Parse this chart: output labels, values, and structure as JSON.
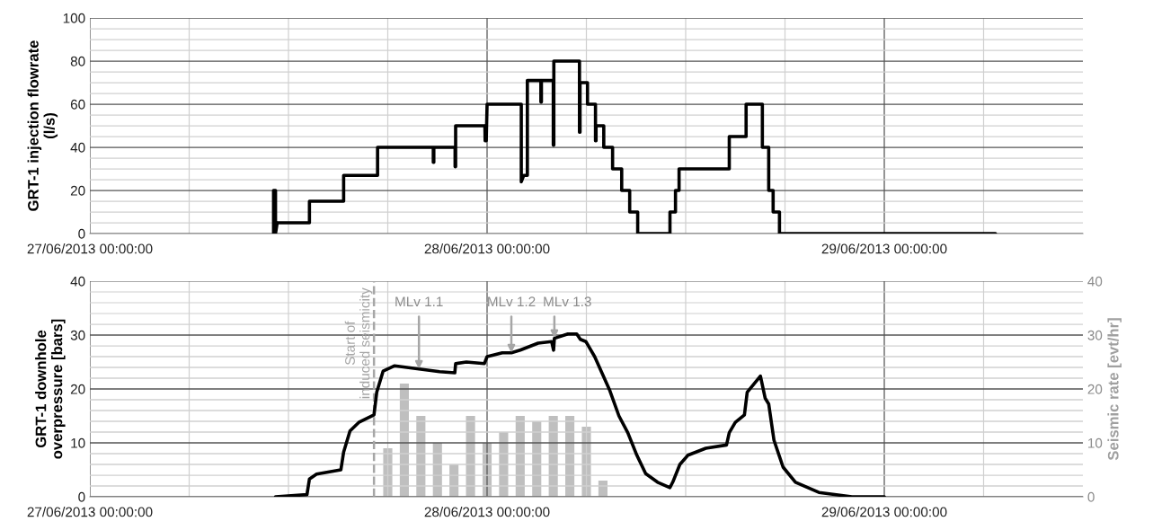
{
  "chart_data": [
    {
      "type": "line",
      "ylabel": "GRT-1 injection flowrate\n(l/s)",
      "xlim": [
        "2013-06-27T00:00",
        "2013-06-29T12:00"
      ],
      "xticks": [
        {
          "value": "2013-06-27T00:00",
          "label": "27/06/2013 00:00:00"
        },
        {
          "value": "2013-06-27T06:00",
          "label": null
        },
        {
          "value": "2013-06-27T12:00",
          "label": null
        },
        {
          "value": "2013-06-27T18:00",
          "label": null
        },
        {
          "value": "2013-06-28T00:00",
          "label": "28/06/2013 00:00:00"
        },
        {
          "value": "2013-06-28T06:00",
          "label": null
        },
        {
          "value": "2013-06-28T12:00",
          "label": null
        },
        {
          "value": "2013-06-28T18:00",
          "label": null
        },
        {
          "value": "2013-06-29T00:00",
          "label": "29/06/2013 00:00:00"
        },
        {
          "value": "2013-06-29T06:00",
          "label": null
        }
      ],
      "ylim": [
        0,
        100
      ],
      "yticks": [
        0,
        {
          "value": 5,
          "label": null
        },
        {
          "value": 10,
          "label": null
        },
        {
          "value": 15,
          "label": null
        },
        20,
        {
          "value": 25,
          "label": null
        },
        {
          "value": 30,
          "label": null
        },
        {
          "value": 35,
          "label": null
        },
        40,
        {
          "value": 45,
          "label": null
        },
        {
          "value": 50,
          "label": null
        },
        {
          "value": 55,
          "label": null
        },
        60,
        {
          "value": 65,
          "label": null
        },
        {
          "value": 70,
          "label": null
        },
        {
          "value": 75,
          "label": null
        },
        80,
        {
          "value": 85,
          "label": null
        },
        {
          "value": 90,
          "label": null
        },
        {
          "value": 95,
          "label": null
        },
        100
      ],
      "grid": true,
      "series": [
        {
          "color": "#000000",
          "x": [
            "2013-06-27T11:06",
            "2013-06-27T11:06",
            "2013-06-27T11:13",
            "2013-06-27T11:13",
            "2013-06-27T11:19",
            "2013-06-27T13:16",
            "2013-06-27T13:16",
            "2013-06-27T15:20",
            "2013-06-27T15:20",
            "2013-06-27T17:23",
            "2013-06-27T17:23",
            "2013-06-27T20:45",
            "2013-06-27T20:45",
            "2013-06-27T20:47",
            "2013-06-27T20:47",
            "2013-06-27T22:04",
            "2013-06-27T22:04",
            "2013-06-27T22:06",
            "2013-06-27T22:06",
            "2013-06-27T23:52",
            "2013-06-27T23:53",
            "2013-06-27T23:57",
            "2013-06-28T00:00",
            "2013-06-28T02:04",
            "2013-06-28T02:04",
            "2013-06-28T02:13",
            "2013-06-28T02:26",
            "2013-06-28T02:26",
            "2013-06-28T03:15",
            "2013-06-28T03:15",
            "2013-06-28T03:17",
            "2013-06-28T03:17",
            "2013-06-28T04:00",
            "2013-06-28T04:00",
            "2013-06-28T04:02",
            "2013-06-28T04:02",
            "2013-06-28T05:35",
            "2013-06-28T05:35",
            "2013-06-28T05:37",
            "2013-06-28T05:37",
            "2013-06-28T06:04",
            "2013-06-28T06:04",
            "2013-06-28T06:33",
            "2013-06-28T06:33",
            "2013-06-28T06:35",
            "2013-06-28T06:35",
            "2013-06-28T07:03",
            "2013-06-28T07:03",
            "2013-06-28T07:35",
            "2013-06-28T07:35",
            "2013-06-28T08:08",
            "2013-06-28T08:08",
            "2013-06-28T08:37",
            "2013-06-28T08:37",
            "2013-06-28T09:06",
            "2013-06-28T09:06",
            "2013-06-28T11:03",
            "2013-06-28T11:03",
            "2013-06-28T11:23",
            "2013-06-28T11:23",
            "2013-06-28T11:36",
            "2013-06-28T11:36",
            "2013-06-28T14:38",
            "2013-06-28T14:38",
            "2013-06-28T15:39",
            "2013-06-28T15:39",
            "2013-06-28T16:38",
            "2013-06-28T16:38",
            "2013-06-28T17:01",
            "2013-06-28T17:01",
            "2013-06-28T17:17",
            "2013-06-28T17:17",
            "2013-06-28T17:40",
            "2013-06-28T17:40",
            "2013-06-29T06:43"
          ],
          "values": [
            0,
            20,
            20,
            0,
            5,
            5,
            15,
            15,
            27,
            27,
            40,
            40,
            33,
            33,
            40,
            40,
            31,
            31,
            50,
            50,
            43,
            43,
            60,
            60,
            24,
            27,
            27,
            71,
            71,
            61,
            61,
            71,
            71,
            41,
            41,
            80,
            80,
            47,
            47,
            70,
            70,
            60,
            60,
            43,
            43,
            50,
            50,
            40,
            40,
            30,
            30,
            20,
            20,
            10,
            10,
            0,
            0,
            10,
            10,
            20,
            20,
            30,
            30,
            45,
            45,
            60,
            60,
            40,
            40,
            20,
            20,
            10,
            10,
            0,
            0
          ]
        }
      ]
    },
    {
      "type": "line",
      "ylabel": "GRT-1 downhole\noverpressure [bars]",
      "y2label": "Seismic rate [evt/hr]",
      "xlim": [
        "2013-06-27T00:00",
        "2013-06-29T12:00"
      ],
      "xticks": [
        {
          "value": "2013-06-27T00:00",
          "label": "27/06/2013 00:00:00"
        },
        {
          "value": "2013-06-27T06:00",
          "label": null
        },
        {
          "value": "2013-06-27T12:00",
          "label": null
        },
        {
          "value": "2013-06-27T18:00",
          "label": null
        },
        {
          "value": "2013-06-28T00:00",
          "label": "28/06/2013 00:00:00"
        },
        {
          "value": "2013-06-28T06:00",
          "label": null
        },
        {
          "value": "2013-06-28T12:00",
          "label": null
        },
        {
          "value": "2013-06-28T18:00",
          "label": null
        },
        {
          "value": "2013-06-29T00:00",
          "label": "29/06/2013 00:00:00"
        },
        {
          "value": "2013-06-29T06:00",
          "label": null
        }
      ],
      "ylim": [
        0,
        40
      ],
      "yticks": [
        0,
        {
          "value": 2,
          "label": null
        },
        {
          "value": 4,
          "label": null
        },
        {
          "value": 6,
          "label": null
        },
        {
          "value": 8,
          "label": null
        },
        10,
        {
          "value": 12,
          "label": null
        },
        {
          "value": 14,
          "label": null
        },
        {
          "value": 16,
          "label": null
        },
        {
          "value": 18,
          "label": null
        },
        20,
        {
          "value": 22,
          "label": null
        },
        {
          "value": 24,
          "label": null
        },
        {
          "value": 26,
          "label": null
        },
        {
          "value": 28,
          "label": null
        },
        30,
        {
          "value": 32,
          "label": null
        },
        {
          "value": 34,
          "label": null
        },
        {
          "value": 36,
          "label": null
        },
        {
          "value": 38,
          "label": null
        },
        40
      ],
      "y2lim": [
        0,
        40
      ],
      "y2ticks": [
        0,
        10,
        20,
        30,
        40
      ],
      "grid": true,
      "ref_lines": [
        {
          "axis": "x",
          "value": "2013-06-27T17:10",
          "label": "Start of\ninduced seismicity",
          "color": "#a6a6a6",
          "line_style": "dashed"
        }
      ],
      "annotations": [
        {
          "text": "MLv 1.1",
          "x": "2013-06-27T19:53",
          "y": 23.7
        },
        {
          "text": "MLv 1.2",
          "x": "2013-06-28T01:28",
          "y": 26.7
        },
        {
          "text": "MLv 1.3",
          "x": "2013-06-28T04:04",
          "y": 29.4
        }
      ],
      "series": [
        {
          "type": "bar",
          "axis": "y2",
          "color": "#bfbfbf",
          "x": [
            "2013-06-27T18:00",
            "2013-06-27T19:00",
            "2013-06-27T20:00",
            "2013-06-27T21:00",
            "2013-06-27T22:00",
            "2013-06-27T23:00",
            "2013-06-28T00:00",
            "2013-06-28T01:00",
            "2013-06-28T02:00",
            "2013-06-28T03:00",
            "2013-06-28T04:00",
            "2013-06-28T05:00",
            "2013-06-28T06:00",
            "2013-06-28T07:00"
          ],
          "values": [
            9,
            21,
            15,
            10,
            6,
            15,
            10,
            12,
            15,
            14,
            15,
            15,
            13,
            3
          ]
        },
        {
          "type": "line",
          "axis": "y",
          "color": "#000000",
          "x": [
            "2013-06-27T11:13",
            "2013-06-27T13:07",
            "2013-06-27T13:16",
            "2013-06-27T13:42",
            "2013-06-27T15:10",
            "2013-06-27T15:20",
            "2013-06-27T15:43",
            "2013-06-27T16:15",
            "2013-06-27T17:10",
            "2013-06-27T17:20",
            "2013-06-27T17:43",
            "2013-06-27T18:25",
            "2013-06-27T19:53",
            "2013-06-27T21:08",
            "2013-06-27T22:03",
            "2013-06-27T22:06",
            "2013-06-27T22:45",
            "2013-06-27T23:50",
            "2013-06-28T00:00",
            "2013-06-28T00:55",
            "2013-06-28T01:28",
            "2013-06-28T02:00",
            "2013-06-28T03:05",
            "2013-06-28T03:54",
            "2013-06-28T04:01",
            "2013-06-28T04:04",
            "2013-06-28T04:53",
            "2013-06-28T05:25",
            "2013-06-28T05:38",
            "2013-06-28T05:58",
            "2013-06-28T06:30",
            "2013-06-28T07:25",
            "2013-06-28T07:58",
            "2013-06-28T08:30",
            "2013-06-28T09:03",
            "2013-06-28T09:35",
            "2013-06-28T10:18",
            "2013-06-28T11:03",
            "2013-06-28T11:13",
            "2013-06-28T11:39",
            "2013-06-28T12:08",
            "2013-06-28T13:13",
            "2013-06-28T14:28",
            "2013-06-28T14:38",
            "2013-06-28T15:00",
            "2013-06-28T15:33",
            "2013-06-28T15:43",
            "2013-06-28T16:31",
            "2013-06-28T16:48",
            "2013-06-28T17:01",
            "2013-06-28T17:20",
            "2013-06-28T17:53",
            "2013-06-28T18:38",
            "2013-06-28T20:03",
            "2013-06-28T22:03",
            "2013-06-29T00:00"
          ],
          "values": [
            0,
            0.4,
            3.3,
            4.2,
            5,
            8.3,
            12.2,
            13.8,
            15.2,
            19.4,
            23.3,
            24.3,
            23.7,
            23.2,
            23,
            24.7,
            25,
            24.7,
            26,
            26.7,
            26.7,
            27.2,
            28.5,
            28.8,
            27.2,
            29.4,
            30.2,
            30.2,
            29.2,
            28.8,
            26,
            19.7,
            15,
            11.9,
            7.7,
            4.3,
            2.7,
            1.7,
            2.7,
            6,
            7.7,
            9,
            9.6,
            11.9,
            13.8,
            15.2,
            19.4,
            22.4,
            18.3,
            17.2,
            10.5,
            5.5,
            2.7,
            0.8,
            0,
            0
          ]
        }
      ]
    }
  ]
}
